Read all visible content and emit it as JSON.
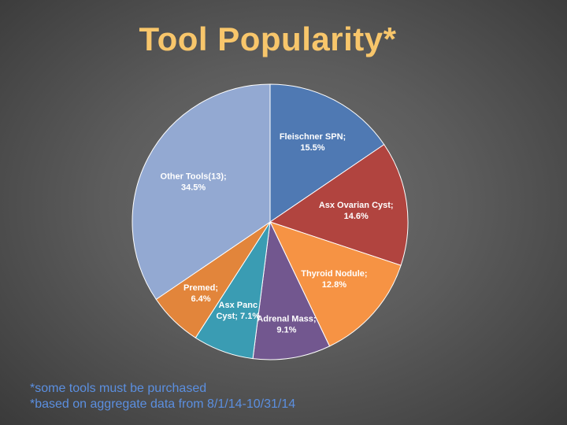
{
  "title": "Tool Popularity*",
  "footnotes": [
    "*some tools must be purchased",
    "*based on aggregate data from 8/1/14-10/31/14"
  ],
  "colors": {
    "title": "#f8c66b",
    "footnote": "#5b8fe0",
    "label_text": "#ffffff",
    "slice_border": "#ffffff"
  },
  "chart_data": {
    "type": "pie",
    "title": "Tool Popularity*",
    "legend": "none",
    "slices": [
      {
        "name": "Fleischner SPN",
        "value": 15.5,
        "label_lines": [
          "Fleischner SPN;",
          "15.5%"
        ],
        "color": "#4f79b3"
      },
      {
        "name": "Asx Ovarian Cyst",
        "value": 14.6,
        "label_lines": [
          "Asx Ovarian Cyst;",
          "14.6%"
        ],
        "color": "#b1443f"
      },
      {
        "name": "Thyroid Nodule",
        "value": 12.8,
        "label_lines": [
          "Thyroid Nodule;",
          "12.8%"
        ],
        "color": "#f69344"
      },
      {
        "name": "Adrenal Mass",
        "value": 9.1,
        "label_lines": [
          "Adrenal Mass;",
          "9.1%"
        ],
        "color": "#72578f"
      },
      {
        "name": "Asx Panc Cyst",
        "value": 7.1,
        "label_lines": [
          "Asx Panc",
          "Cyst; 7.1%"
        ],
        "color": "#3a9cb3"
      },
      {
        "name": "Premed",
        "value": 6.4,
        "label_lines": [
          "Premed;",
          "6.4%"
        ],
        "color": "#e2853b"
      },
      {
        "name": "Other Tools(13)",
        "value": 34.5,
        "label_lines": [
          "Other Tools(13);",
          "34.5%"
        ],
        "color": "#93a9d2"
      }
    ]
  }
}
